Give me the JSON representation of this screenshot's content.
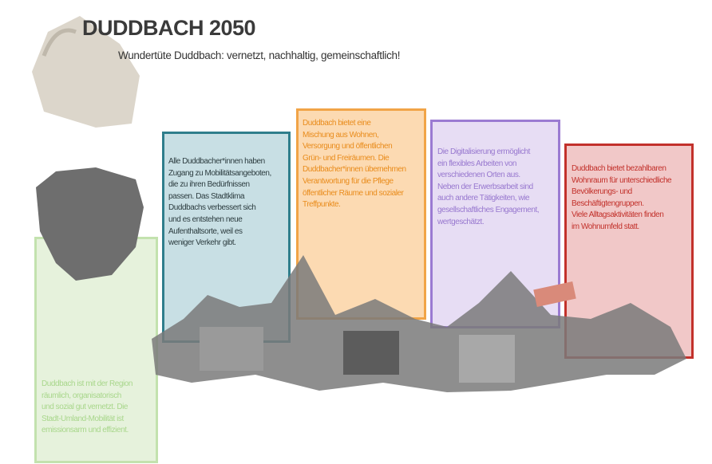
{
  "header": {
    "title": "DUDDBACH 2050",
    "subtitle": "Wundertüte Duddbach: vernetzt, nachhaltig, gemeinschaftlich!"
  },
  "panels": [
    {
      "lines": [
        "Duddbach ist mit der Region",
        "räumlich, organisatorisch",
        "und sozial gut vernetzt. Die",
        "Stadt-Umland-Mobilität ist",
        "emissionsarm und effizient."
      ]
    },
    {
      "lines": [
        "Alle Duddbacher*innen haben",
        "Zugang zu Mobilitätsangeboten,",
        "die zu ihren Bedürfnissen",
        "passen. Das Stadtklima",
        "Duddbachs verbessert sich",
        "und es entstehen neue",
        "Aufenthaltsorte, weil es",
        "weniger Verkehr gibt."
      ]
    },
    {
      "lines": [
        "Duddbach bietet eine",
        "Mischung aus Wohnen,",
        "Versorgung und öffentlichen",
        "Grün- und Freiräumen. Die",
        "Duddbacher*innen übernehmen",
        "Verantwortung für die Pflege",
        "öffentlicher Räume und sozialer",
        "Treffpunkte."
      ]
    },
    {
      "lines": [
        "Die Digitalisierung ermöglicht",
        "ein flexibles Arbeiten von",
        "verschiedenen Orten aus.",
        "Neben der Erwerbsarbeit sind",
        "auch andere Tätigkeiten, wie",
        "gesellschaftliches Engagement,",
        "wertgeschätzt."
      ]
    },
    {
      "lines": [
        "Duddbach bietet bezahlbaren",
        "Wohnraum für unterschiedliche",
        "Bevölkerungs- und",
        "Beschäftigtengruppen.",
        "Viele Alltagsaktivitäten finden",
        "im Wohnumfeld statt."
      ]
    }
  ]
}
